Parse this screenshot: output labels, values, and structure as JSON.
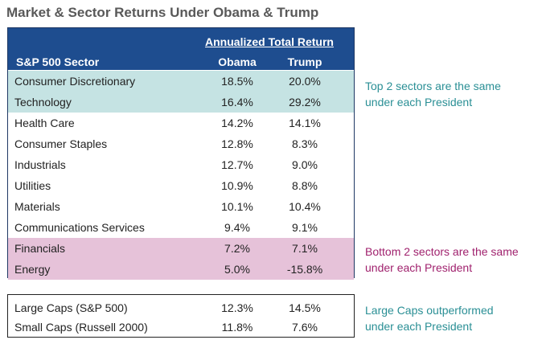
{
  "title": "Market & Sector Returns Under Obama & Trump",
  "colors": {
    "header_bg": "#1e4d8f",
    "top_highlight": "#c5e3e3",
    "bottom_highlight": "#e6c2d9",
    "note_teal": "#2a8f95",
    "note_magenta": "#a0226e"
  },
  "chart_data": {
    "type": "table",
    "title": "Market & Sector Returns Under Obama & Trump",
    "header": {
      "group": "Annualized Total Return",
      "sector": "S&P 500 Sector",
      "obama": "Obama",
      "trump": "Trump"
    },
    "rows": [
      {
        "name": "Consumer Discretionary",
        "obama": "18.5%",
        "trump": "20.0%",
        "highlight": "top"
      },
      {
        "name": "Technology",
        "obama": "16.4%",
        "trump": "29.2%",
        "highlight": "top"
      },
      {
        "name": "Health Care",
        "obama": "14.2%",
        "trump": "14.1%",
        "highlight": ""
      },
      {
        "name": "Consumer Staples",
        "obama": "12.8%",
        "trump": "8.3%",
        "highlight": ""
      },
      {
        "name": "Industrials",
        "obama": "12.7%",
        "trump": "9.0%",
        "highlight": ""
      },
      {
        "name": "Utilities",
        "obama": "10.9%",
        "trump": "8.8%",
        "highlight": ""
      },
      {
        "name": "Materials",
        "obama": "10.1%",
        "trump": "10.4%",
        "highlight": ""
      },
      {
        "name": "Communications Services",
        "obama": "9.4%",
        "trump": "9.1%",
        "highlight": ""
      },
      {
        "name": "Financials",
        "obama": "7.2%",
        "trump": "7.1%",
        "highlight": "bottom"
      },
      {
        "name": "Energy",
        "obama": "5.0%",
        "trump": "-15.8%",
        "highlight": "bottom"
      }
    ],
    "caps": [
      {
        "name": "Large Caps (S&P 500)",
        "obama": "12.3%",
        "trump": "14.5%"
      },
      {
        "name": "Small Caps (Russell 2000)",
        "obama": "11.8%",
        "trump": "7.6%"
      }
    ]
  },
  "notes": {
    "top": [
      "Top 2 sectors are the same",
      "under each President"
    ],
    "bottom": [
      "Bottom 2 sectors are the same",
      "under each President"
    ],
    "caps": [
      "Large Caps outperformed",
      "under each President"
    ]
  }
}
